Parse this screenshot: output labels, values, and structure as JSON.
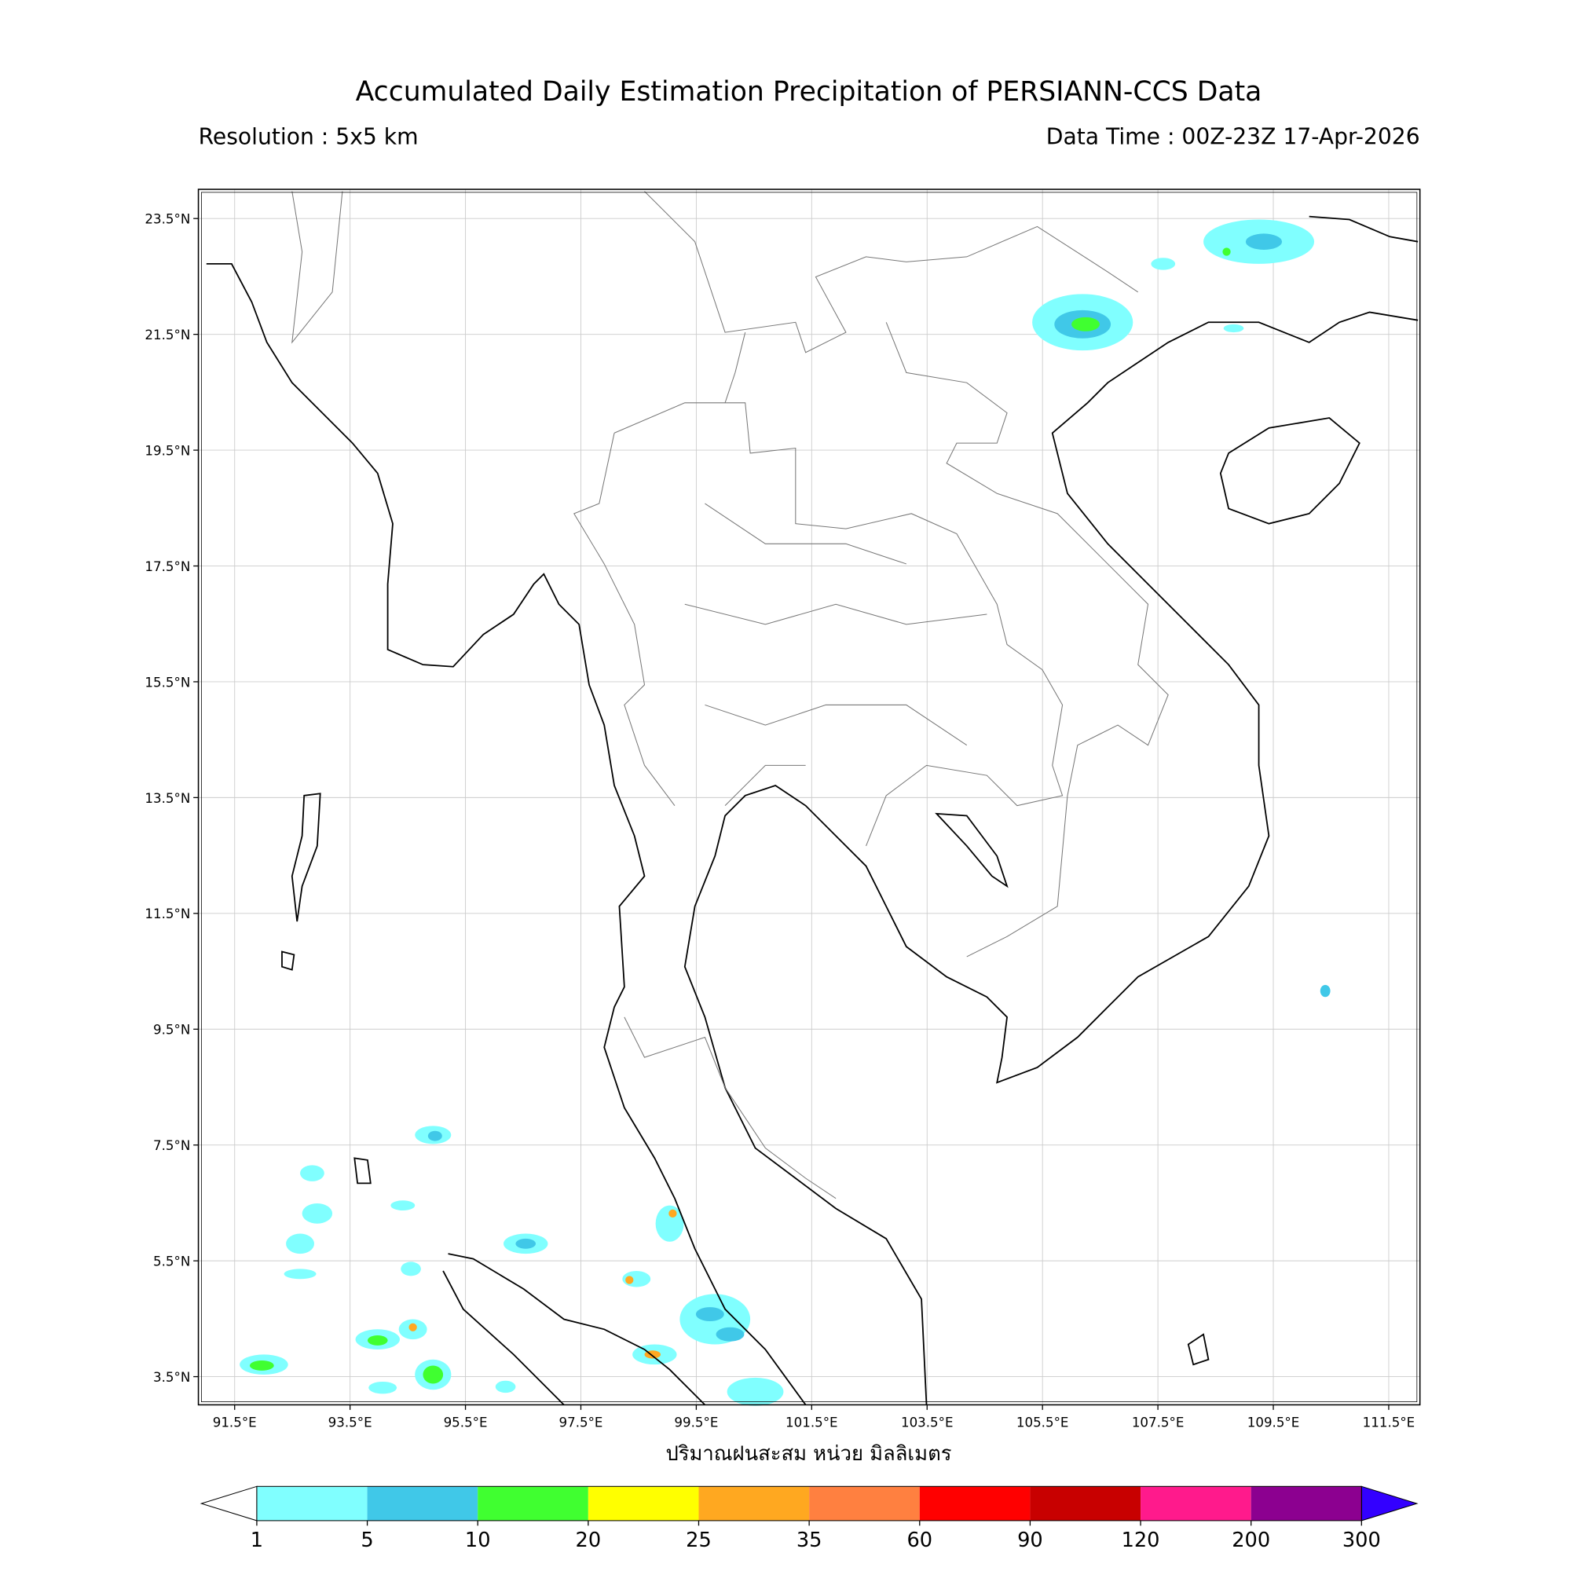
{
  "title": "Accumulated Daily Estimation Precipitation of PERSIANN-CCS Data",
  "resolution": "Resolution : 5x5 km",
  "data_time": "Data Time : 00Z-23Z 17-Apr-2026",
  "lat_ticks": [
    "23.5°N",
    "21.5°N",
    "19.5°N",
    "17.5°N",
    "15.5°N",
    "13.5°N",
    "11.5°N",
    "9.5°N",
    "7.5°N",
    "5.5°N",
    "3.5°N"
  ],
  "lon_ticks": [
    "91.5°E",
    "93.5°E",
    "95.5°E",
    "97.5°E",
    "99.5°E",
    "101.5°E",
    "103.5°E",
    "105.5°E",
    "107.5°E",
    "109.5°E",
    "111.5°E"
  ],
  "axis_label": "ปริมาณฝนสะสม หน่วย มิลลิเมตร",
  "colorbar": {
    "levels": [
      1,
      5,
      10,
      20,
      25,
      35,
      60,
      90,
      120,
      200,
      300
    ],
    "colors": [
      "#80ffff",
      "#40c8e8",
      "#40ff30",
      "#ffff00",
      "#ffa820",
      "#ff8040",
      "#ff0000",
      "#c80000",
      "#ff1a8c",
      "#8c0090"
    ],
    "under_color": "#ffffff",
    "over_color": "#3300ff"
  }
}
